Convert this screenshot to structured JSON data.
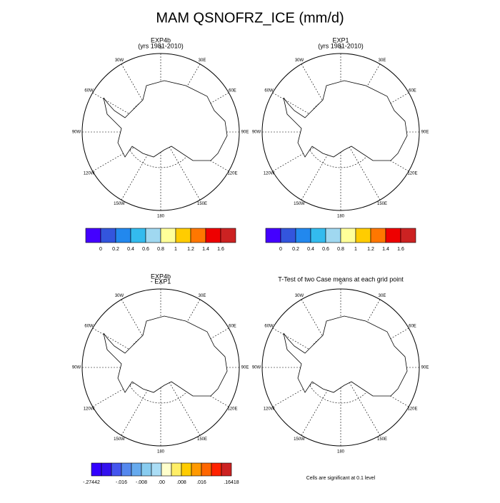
{
  "title": "MAM QSNOFRZ_ICE (mm/d)",
  "longitude_labels": [
    "0",
    "30E",
    "60E",
    "90E",
    "120E",
    "150E",
    "180",
    "150W",
    "120W",
    "90W",
    "60W",
    "30W"
  ],
  "panels": [
    {
      "title_lines": [
        "EXP4b",
        "(yrs 1981-2010)"
      ]
    },
    {
      "title_lines": [
        "EXP1",
        "(yrs 1981-2010)"
      ]
    },
    {
      "title_lines": [
        "EXP4b",
        "- EXP1"
      ]
    },
    {
      "title_lines": [
        "T-Test of two Case means at each grid point"
      ]
    }
  ],
  "colorbars": [
    {
      "colors": [
        "#4400ff",
        "#3355dd",
        "#2288ee",
        "#33bbee",
        "#a0d8f0",
        "#ffff99",
        "#ffcc00",
        "#ff7700",
        "#ee0000",
        "#cc2222"
      ],
      "labels": [
        "0",
        "0.2",
        "0.4",
        "0.6",
        "0.8",
        "1",
        "1.2",
        "1.4",
        "1.6"
      ]
    },
    {
      "colors": [
        "#4400ff",
        "#3355dd",
        "#2288ee",
        "#33bbee",
        "#a0d8f0",
        "#ffff99",
        "#ffcc00",
        "#ff7700",
        "#ee0000",
        "#cc2222"
      ],
      "labels": [
        "0",
        "0.2",
        "0.4",
        "0.6",
        "0.8",
        "1",
        "1.2",
        "1.4",
        "1.6"
      ]
    },
    {
      "colors": [
        "#3300ff",
        "#3311ee",
        "#4455ee",
        "#5588ee",
        "#66aaee",
        "#88ccf0",
        "#aaddf5",
        "#ffffcc",
        "#ffee66",
        "#ffcc00",
        "#ff9900",
        "#ff6600",
        "#ff2200",
        "#cc2222"
      ],
      "labels": [
        "-.27442",
        "-.016",
        "-.008",
        ".00",
        ".008",
        ".016",
        ".16418"
      ]
    }
  ],
  "note": "Cells are significant at 0.1 level"
}
